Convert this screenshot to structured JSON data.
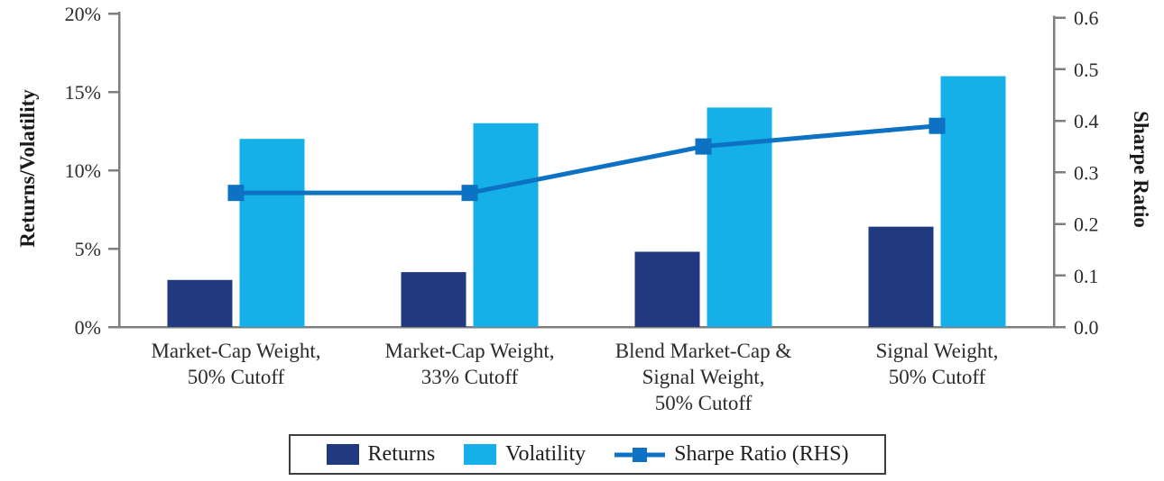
{
  "chart_data": {
    "type": "bar+line",
    "title": "",
    "categories": [
      "Market-Cap Weight,\n50% Cutoff",
      "Market-Cap Weight,\n33% Cutoff",
      "Blend Market-Cap &\nSignal Weight,\n50% Cutoff",
      "Signal Weight,\n50% Cutoff"
    ],
    "series": [
      {
        "name": "Returns",
        "type": "bar",
        "axis": "left",
        "unit": "%",
        "values": [
          3.0,
          3.5,
          4.8,
          6.4
        ],
        "color": "#21397f"
      },
      {
        "name": "Volatility",
        "type": "bar",
        "axis": "left",
        "unit": "%",
        "values": [
          12.0,
          13.0,
          14.0,
          16.0
        ],
        "color": "#14b0e7"
      },
      {
        "name": "Sharpe Ratio (RHS)",
        "type": "line",
        "axis": "right",
        "unit": "",
        "values": [
          0.26,
          0.26,
          0.35,
          0.39
        ],
        "color": "#0d72c4"
      }
    ],
    "left_axis": {
      "label": "Returns/Volatility",
      "min": 0,
      "max": 20,
      "step": 5,
      "ticks": [
        "0%",
        "5%",
        "10%",
        "15%",
        "20%"
      ]
    },
    "right_axis": {
      "label": "Sharpe Ratio",
      "min": 0.0,
      "max": 0.6,
      "step": 0.1,
      "ticks": [
        "0.0",
        "0.1",
        "0.2",
        "0.3",
        "0.4",
        "0.5",
        "0.6"
      ]
    },
    "legend": {
      "position": "bottom-center",
      "items": [
        "Returns",
        "Volatility",
        "Sharpe Ratio (RHS)"
      ]
    },
    "grid": false
  },
  "colors": {
    "axis_line": "#7f7f7f",
    "tick_text": "#2b2b2b",
    "legend_border": "#3e3e3e",
    "background": "#ffffff"
  }
}
